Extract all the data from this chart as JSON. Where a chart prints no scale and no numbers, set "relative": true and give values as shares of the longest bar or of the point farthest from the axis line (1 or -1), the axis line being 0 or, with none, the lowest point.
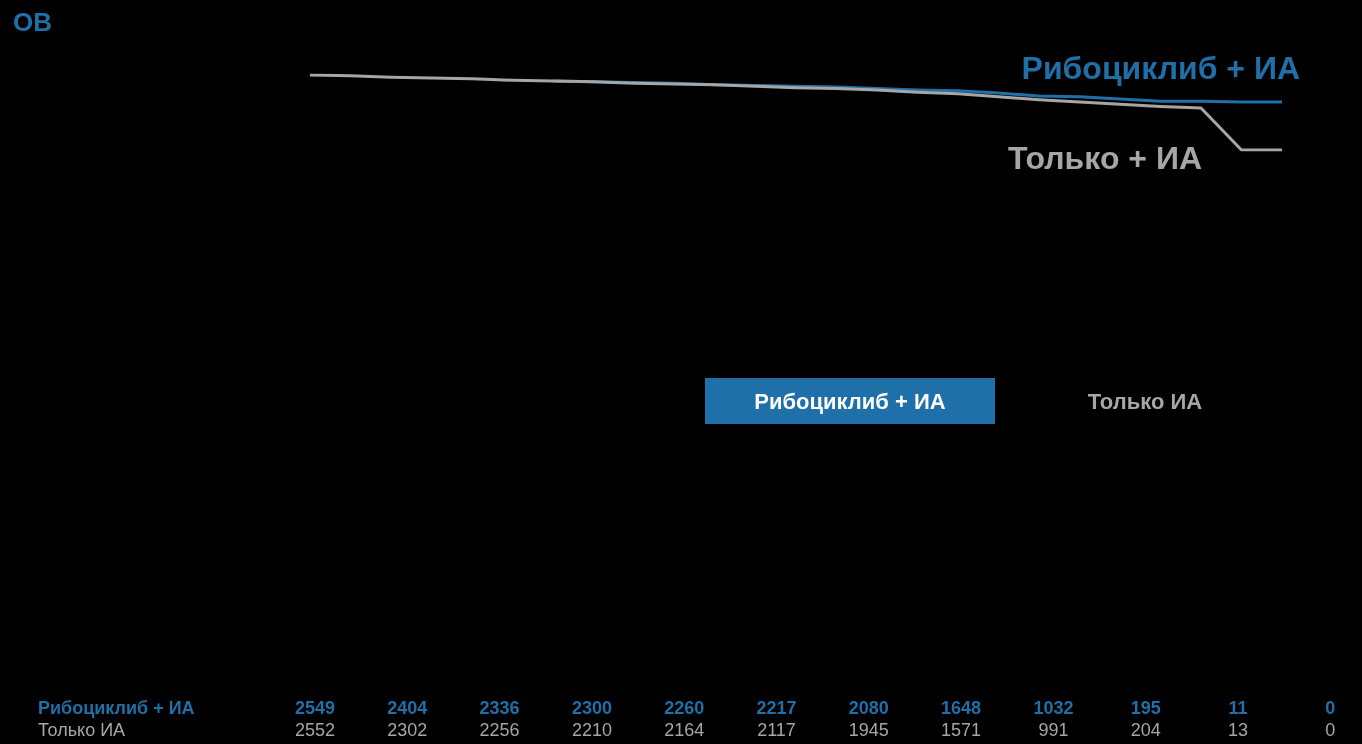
{
  "chart_data": {
    "type": "line",
    "title": "ОВ",
    "relative": true,
    "marker": "none",
    "grid": false,
    "legend": false,
    "categories": [
      null,
      null,
      null,
      null,
      null,
      null,
      null,
      null,
      null,
      null,
      null,
      null,
      null,
      null,
      null,
      null,
      null,
      null,
      null,
      null,
      null,
      null,
      null,
      null,
      null
    ],
    "series": [
      {
        "name": "Рибоциклиб + ИА",
        "color": "#1f6fa8",
        "values": [
          null,
          null,
          null,
          null,
          null,
          null,
          0.92,
          0.91,
          0.9,
          0.89,
          0.87,
          0.86,
          0.85,
          0.84,
          0.82,
          0.8,
          0.79,
          0.76,
          0.72,
          0.71,
          0.68,
          0.65,
          0.65,
          0.64,
          0.64
        ]
      },
      {
        "name": "Только + ИА",
        "color": "#a6a6a6",
        "values": [
          1,
          0.99,
          0.97,
          0.96,
          0.95,
          0.93,
          0.92,
          0.91,
          0.89,
          0.88,
          0.87,
          0.85,
          0.83,
          0.82,
          0.8,
          0.77,
          0.75,
          0.71,
          0.67,
          0.64,
          0.61,
          0.58,
          0.56,
          0,
          0
        ]
      }
    ],
    "annotations": [
      "Рибоциклиб + ИА",
      "Только ИА",
      "Рибоциклиб + ИА",
      "2549",
      "2404",
      "2336",
      "2300",
      "2260",
      "2217",
      "2080",
      "1648",
      "1032",
      "195",
      "11",
      "0",
      "Только ИА",
      "2552",
      "2302",
      "2256",
      "2210",
      "2164",
      "2117",
      "1945",
      "1571",
      "991",
      "204",
      "13",
      "0"
    ]
  }
}
